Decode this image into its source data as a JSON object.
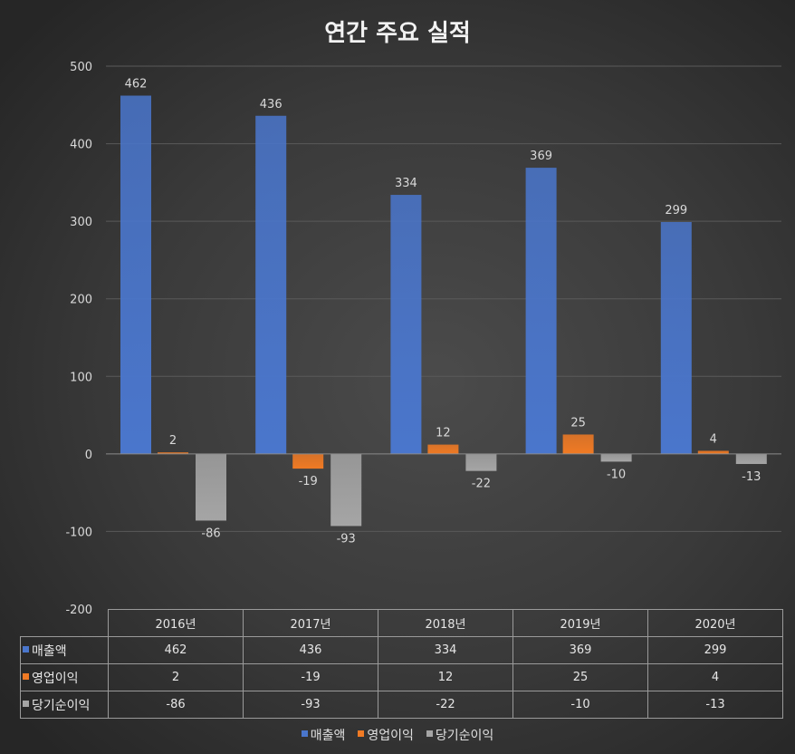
{
  "chart_data": {
    "type": "bar",
    "title": "연간 주요 실적",
    "categories": [
      "2016년",
      "2017년",
      "2018년",
      "2019년",
      "2020년"
    ],
    "series": [
      {
        "name": "매출액",
        "values": [
          462,
          436,
          334,
          369,
          299
        ],
        "color": "#4a76cc"
      },
      {
        "name": "영업이익",
        "values": [
          2,
          -19,
          12,
          25,
          4
        ],
        "color": "#f07a24"
      },
      {
        "name": "당기순이익",
        "values": [
          -86,
          -93,
          -22,
          -10,
          -13
        ],
        "color": "#a5a5a5"
      }
    ],
    "ylim": [
      -200,
      500
    ],
    "yticks": [
      500,
      400,
      300,
      200,
      100,
      0,
      -100,
      -200
    ],
    "xlabel": "",
    "ylabel": "",
    "grid": true,
    "legend": "bottom",
    "data_table": true
  }
}
